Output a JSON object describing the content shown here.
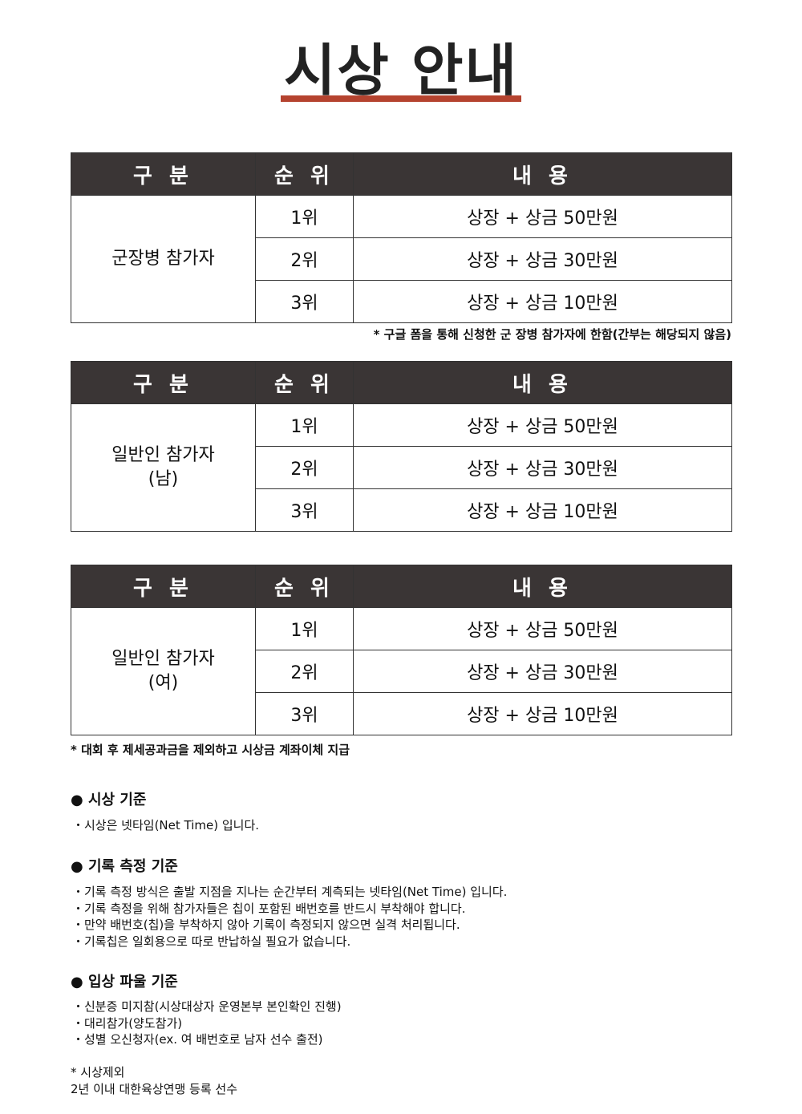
{
  "title": "시상 안내",
  "headers": {
    "category": "구 분",
    "rank": "순 위",
    "content": "내 용"
  },
  "tables": [
    {
      "category": "군장병 참가자",
      "rows": [
        {
          "rank": "1위",
          "prize": "상장 + 상금 50만원"
        },
        {
          "rank": "2위",
          "prize": "상장 + 상금 30만원"
        },
        {
          "rank": "3위",
          "prize": "상장 + 상금 10만원"
        }
      ]
    },
    {
      "category": "일반인 참가자\n(남)",
      "rows": [
        {
          "rank": "1위",
          "prize": "상장 + 상금 50만원"
        },
        {
          "rank": "2위",
          "prize": "상장 + 상금 30만원"
        },
        {
          "rank": "3위",
          "prize": "상장 + 상금 10만원"
        }
      ]
    },
    {
      "category": "일반인 참가자\n(여)",
      "rows": [
        {
          "rank": "1위",
          "prize": "상장 + 상금 50만원"
        },
        {
          "rank": "2위",
          "prize": "상장 + 상금 30만원"
        },
        {
          "rank": "3위",
          "prize": "상장 + 상금 10만원"
        }
      ]
    }
  ],
  "notes": {
    "military": "* 구글 폼을 통해 신청한 군 장병 참가자에 한함(간부는 해당되지 않음)",
    "payment": "* 대회 후 제세공과금을 제외하고 시상금 계좌이체 지급"
  },
  "sections": [
    {
      "title": "● 시상 기준",
      "lines": [
        "・시상은 넷타임(Net Time) 입니다."
      ]
    },
    {
      "title": "● 기록 측정 기준",
      "lines": [
        "・기록 측정 방식은 출발 지점을 지나는 순간부터 계측되는 넷타임(Net Time) 입니다.",
        "・기록 측정을 위해 참가자들은 칩이 포함된 배번호를 반드시 부착해야 합니다.",
        "・만약 배번호(칩)을 부착하지 않아 기록이 측정되지 않으면 실격 처리됩니다.",
        "・기록칩은 일회용으로 따로 반납하실 필요가 없습니다."
      ]
    },
    {
      "title": "● 입상 파울 기준",
      "lines": [
        "・신분증 미지참(시상대상자 운영본부 본인확인 진행)",
        "・대리참가(양도참가)",
        "・성별 오신청자(ex. 여 배번호로 남자 선수 출전)"
      ]
    }
  ],
  "exclusion": {
    "title": "* 시상제외",
    "text": "2년 이내 대한육상연맹 등록 선수"
  }
}
